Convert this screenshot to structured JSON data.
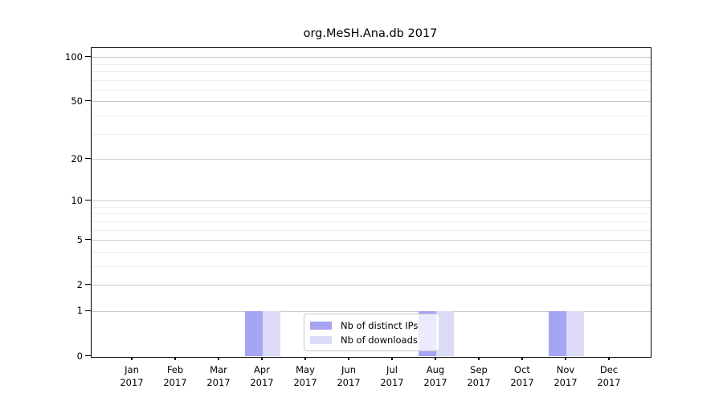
{
  "chart_data": {
    "type": "bar",
    "title": "org.MeSH.Ana.db 2017",
    "categories": [
      "Jan 2017",
      "Feb 2017",
      "Mar 2017",
      "Apr 2017",
      "May 2017",
      "Jun 2017",
      "Jul 2017",
      "Aug 2017",
      "Sep 2017",
      "Oct 2017",
      "Nov 2017",
      "Dec 2017"
    ],
    "month_labels": [
      "Jan",
      "Feb",
      "Mar",
      "Apr",
      "May",
      "Jun",
      "Jul",
      "Aug",
      "Sep",
      "Oct",
      "Nov",
      "Dec"
    ],
    "year_label": "2017",
    "series": [
      {
        "name": "Nb of distinct IPs",
        "color": "#a5a5f3",
        "values": [
          0,
          0,
          0,
          1,
          0,
          0,
          0,
          1,
          0,
          0,
          1,
          0
        ]
      },
      {
        "name": "Nb of downloads",
        "color": "#dbdbf8",
        "values": [
          0,
          0,
          0,
          1,
          0,
          0,
          0,
          1,
          0,
          0,
          1,
          0
        ]
      }
    ],
    "y_scale": "log1p",
    "ylim": [
      0,
      100
    ],
    "y_tick_labels": [
      0,
      1,
      2,
      5,
      10,
      20,
      50,
      100
    ],
    "y_minor_gridlines": [
      3,
      4,
      6,
      7,
      8,
      9,
      30,
      40,
      60,
      70,
      80,
      90
    ],
    "grid": "horizontal",
    "legend_position": "inside-bottom-center",
    "colors": {
      "grid_major": "#c9c9c9",
      "grid_minor": "#ededed",
      "axis": "#000000"
    }
  }
}
